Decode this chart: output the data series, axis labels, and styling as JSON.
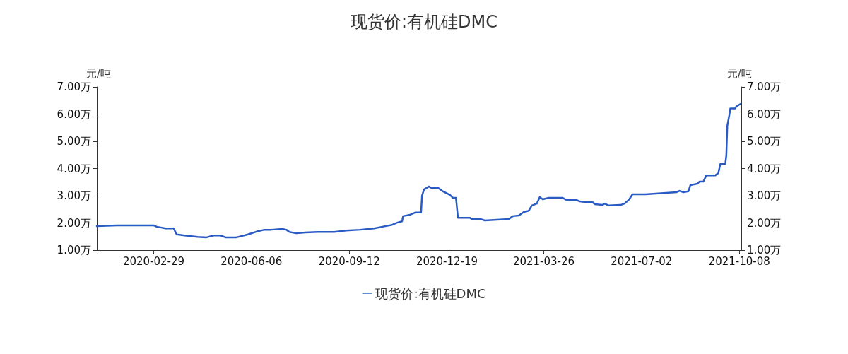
{
  "chart_data": {
    "type": "line",
    "title": "现货价:有机硅DMC",
    "ylabel": "元/吨",
    "y2label": "元/吨",
    "xlim": [
      "2020-01-03",
      "2021-10-10"
    ],
    "xticks": [
      "2020-02-29",
      "2020-06-06",
      "2020-09-12",
      "2020-12-19",
      "2021-03-26",
      "2021-07-02",
      "2021-10-08"
    ],
    "ylim": [
      1,
      7
    ],
    "yticks": [
      {
        "value": 1,
        "label": "1.00万"
      },
      {
        "value": 2,
        "label": "2.00万"
      },
      {
        "value": 3,
        "label": "3.00万"
      },
      {
        "value": 4,
        "label": "4.00万"
      },
      {
        "value": 5,
        "label": "5.00万"
      },
      {
        "value": 6,
        "label": "6.00万"
      },
      {
        "value": 7,
        "label": "7.00万"
      }
    ],
    "y2lim": [
      1,
      7
    ],
    "y2ticks": [
      {
        "value": 1,
        "label": "1.00万"
      },
      {
        "value": 2,
        "label": "2.00万"
      },
      {
        "value": 3,
        "label": "3.00万"
      },
      {
        "value": 4,
        "label": "4.00万"
      },
      {
        "value": 5,
        "label": "5.00万"
      },
      {
        "value": 6,
        "label": "6.00万"
      },
      {
        "value": 7,
        "label": "7.00万"
      }
    ],
    "legend": "bottom",
    "grid": false,
    "marker": "none",
    "line_style": "solid",
    "series": [
      {
        "name": "现货价:有机硅DMC",
        "color": "#2a5bc4",
        "x": [
          "2020-01-03",
          "2020-01-23",
          "2020-02-09",
          "2020-02-29",
          "2020-03-03",
          "2020-03-12",
          "2020-03-20",
          "2020-03-23",
          "2020-03-31",
          "2020-04-13",
          "2020-04-22",
          "2020-04-29",
          "2020-05-06",
          "2020-05-11",
          "2020-05-22",
          "2020-06-02",
          "2020-06-11",
          "2020-06-19",
          "2020-06-26",
          "2020-07-07",
          "2020-07-11",
          "2020-07-14",
          "2020-07-21",
          "2020-07-30",
          "2020-08-11",
          "2020-08-28",
          "2020-09-09",
          "2020-09-23",
          "2020-10-07",
          "2020-10-18",
          "2020-10-25",
          "2020-10-30",
          "2020-11-04",
          "2020-11-05",
          "2020-11-12",
          "2020-11-17",
          "2020-11-23",
          "2020-11-24",
          "2020-11-26",
          "2020-12-01",
          "2020-12-03",
          "2020-12-10",
          "2020-12-14",
          "2020-12-22",
          "2020-12-25",
          "2020-12-28",
          "2020-12-30",
          "2021-01-11",
          "2021-01-13",
          "2021-01-22",
          "2021-01-26",
          "2021-02-19",
          "2021-02-23",
          "2021-03-01",
          "2021-03-06",
          "2021-03-11",
          "2021-03-14",
          "2021-03-19",
          "2021-03-22",
          "2021-03-25",
          "2021-03-31",
          "2021-04-14",
          "2021-04-18",
          "2021-04-28",
          "2021-05-01",
          "2021-05-08",
          "2021-05-14",
          "2021-05-16",
          "2021-05-24",
          "2021-05-26",
          "2021-05-30",
          "2021-06-11",
          "2021-06-15",
          "2021-06-19",
          "2021-06-20",
          "2021-06-23",
          "2021-07-06",
          "2021-08-06",
          "2021-08-09",
          "2021-08-13",
          "2021-08-18",
          "2021-08-20",
          "2021-08-27",
          "2021-08-29",
          "2021-09-02",
          "2021-09-05",
          "2021-09-14",
          "2021-09-17",
          "2021-09-19",
          "2021-09-24",
          "2021-09-25",
          "2021-09-26",
          "2021-09-28",
          "2021-09-29",
          "2021-10-04",
          "2021-10-05",
          "2021-10-09"
        ],
        "values": [
          1.88,
          1.91,
          1.91,
          1.91,
          1.86,
          1.8,
          1.8,
          1.58,
          1.54,
          1.49,
          1.47,
          1.54,
          1.54,
          1.47,
          1.47,
          1.57,
          1.68,
          1.75,
          1.75,
          1.78,
          1.75,
          1.67,
          1.62,
          1.65,
          1.67,
          1.67,
          1.72,
          1.75,
          1.8,
          1.88,
          1.93,
          2.01,
          2.06,
          2.25,
          2.3,
          2.38,
          2.38,
          3.0,
          3.23,
          3.34,
          3.29,
          3.29,
          3.18,
          3.03,
          2.92,
          2.92,
          2.19,
          2.19,
          2.14,
          2.14,
          2.09,
          2.14,
          2.25,
          2.27,
          2.4,
          2.45,
          2.64,
          2.71,
          2.95,
          2.87,
          2.92,
          2.92,
          2.84,
          2.84,
          2.79,
          2.76,
          2.76,
          2.69,
          2.66,
          2.71,
          2.64,
          2.66,
          2.71,
          2.84,
          2.89,
          3.05,
          3.05,
          3.13,
          3.18,
          3.13,
          3.16,
          3.39,
          3.44,
          3.52,
          3.52,
          3.75,
          3.75,
          3.83,
          4.17,
          4.17,
          4.48,
          5.57,
          5.96,
          6.21,
          6.21,
          6.28,
          6.37
        ]
      }
    ]
  }
}
